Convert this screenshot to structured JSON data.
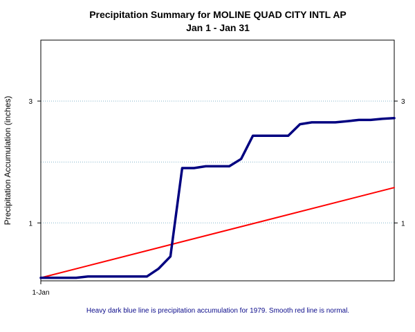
{
  "chart_data": {
    "type": "line",
    "title": "Precipitation Summary for MOLINE QUAD CITY INTL AP",
    "subtitle": "Jan 1 - Jan 31",
    "ylabel": "Precipitation Accumulation (inches)",
    "xlabel": "",
    "caption": "Heavy dark blue line is precipitation accumulation for 1979. Smooth red line is normal.",
    "x_tick_labels": [
      {
        "day": 1,
        "label": "1-Jan"
      }
    ],
    "y_ticks_left": [
      1,
      3
    ],
    "y_ticks_right": [
      1,
      3
    ],
    "y_gridlines": [
      1,
      2,
      3
    ],
    "xlim": [
      1,
      31
    ],
    "ylim": [
      0.05,
      4.0
    ],
    "grid": true,
    "series": [
      {
        "name": "1979",
        "color": "#000080",
        "x": [
          1,
          2,
          3,
          4,
          5,
          6,
          7,
          8,
          9,
          10,
          11,
          12,
          13,
          14,
          15,
          16,
          17,
          18,
          19,
          20,
          21,
          22,
          23,
          24,
          25,
          26,
          27,
          28,
          29,
          30,
          31
        ],
        "y": [
          0.1,
          0.1,
          0.1,
          0.1,
          0.12,
          0.12,
          0.12,
          0.12,
          0.12,
          0.12,
          0.25,
          0.45,
          1.9,
          1.9,
          1.93,
          1.93,
          1.93,
          2.05,
          2.43,
          2.43,
          2.43,
          2.43,
          2.62,
          2.65,
          2.65,
          2.65,
          2.67,
          2.69,
          2.69,
          2.71,
          2.72
        ]
      },
      {
        "name": "normal",
        "color": "#ff0000",
        "x": [
          1,
          31
        ],
        "y": [
          0.1,
          1.58
        ]
      }
    ]
  }
}
